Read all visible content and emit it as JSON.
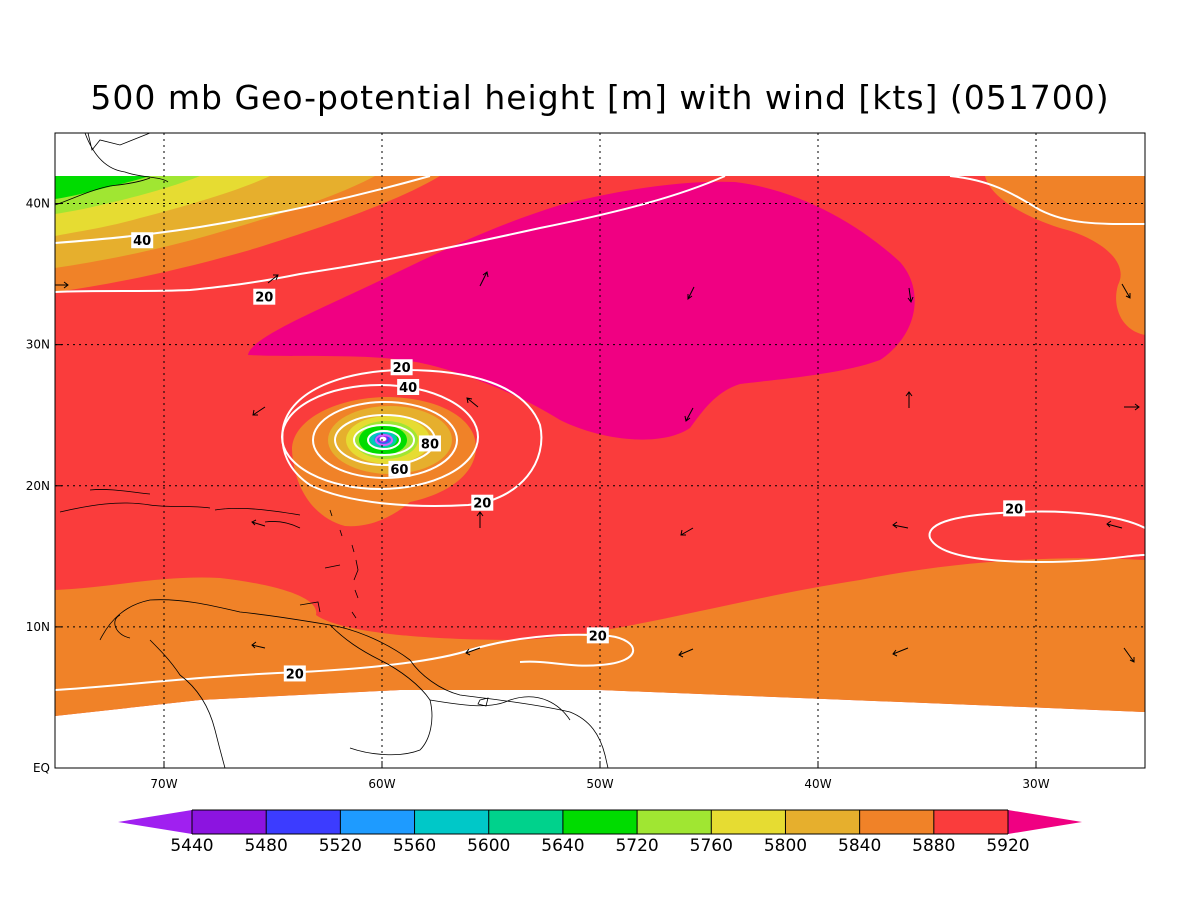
{
  "title": "500 mb Geo-potential height [m] with wind [kts] (051700)",
  "map": {
    "lon_range": [
      -75,
      -25
    ],
    "lat_range": [
      0,
      45
    ],
    "lon_ticks": [
      {
        "lon": -70,
        "label": "70W"
      },
      {
        "lon": -60,
        "label": "60W"
      },
      {
        "lon": -50,
        "label": "50W"
      },
      {
        "lon": -40,
        "label": "40W"
      },
      {
        "lon": -30,
        "label": "30W"
      }
    ],
    "lat_ticks": [
      {
        "lat": 0,
        "label": "EQ"
      },
      {
        "lat": 10,
        "label": "10N"
      },
      {
        "lat": 20,
        "label": "20N"
      },
      {
        "lat": 30,
        "label": "30N"
      },
      {
        "lat": 40,
        "label": "40N"
      }
    ],
    "grid": true,
    "isotach_labels": [
      {
        "lon": -71.0,
        "lat": 37.4,
        "text": "40"
      },
      {
        "lon": -65.4,
        "lat": 33.4,
        "text": "20"
      },
      {
        "lon": -59.1,
        "lat": 28.4,
        "text": "20"
      },
      {
        "lon": -58.8,
        "lat": 27.0,
        "text": "40"
      },
      {
        "lon": -57.8,
        "lat": 23.0,
        "text": "80"
      },
      {
        "lon": -59.2,
        "lat": 21.2,
        "text": "60"
      },
      {
        "lon": -55.4,
        "lat": 18.8,
        "text": "20"
      },
      {
        "lon": -31.0,
        "lat": 18.4,
        "text": "20"
      },
      {
        "lon": -50.1,
        "lat": 9.4,
        "text": "20"
      },
      {
        "lon": -64.0,
        "lat": 6.7,
        "text": "20"
      }
    ]
  },
  "colorbar": {
    "colors": [
      "#a020f0",
      "#8c14e0",
      "#3c3cff",
      "#1e9bff",
      "#00c8c8",
      "#00d28c",
      "#00dc00",
      "#a0e632",
      "#e6dc32",
      "#e6af2d",
      "#f08228",
      "#fa3c3c",
      "#f00082"
    ],
    "labels": [
      "5440",
      "5480",
      "5520",
      "5560",
      "5600",
      "5640",
      "5720",
      "5760",
      "5800",
      "5840",
      "5880",
      "5920"
    ]
  }
}
